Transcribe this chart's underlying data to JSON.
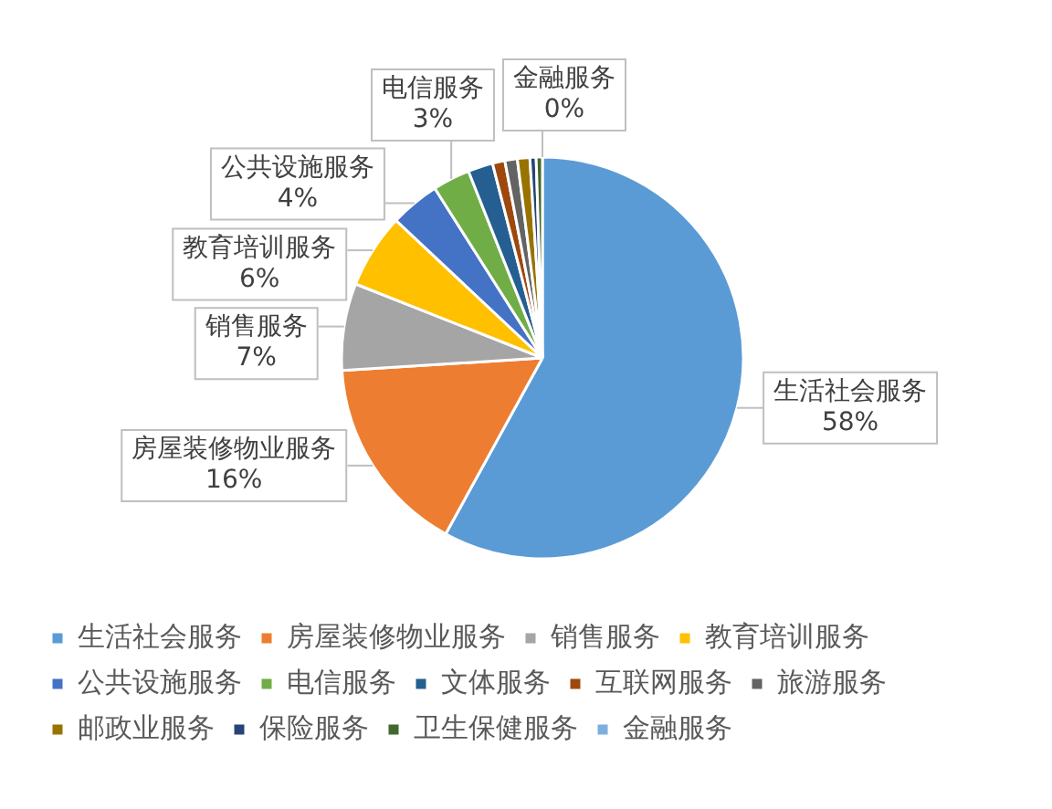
{
  "chart_data": {
    "type": "pie",
    "categories": [
      "生活社会服务",
      "房屋装修物业服务",
      "销售服务",
      "教育培训服务",
      "公共设施服务",
      "电信服务",
      "文体服务",
      "互联网服务",
      "旅游服务",
      "邮政业服务",
      "保险服务",
      "卫生保健服务",
      "金融服务"
    ],
    "values": [
      58,
      16,
      7,
      6,
      4,
      3,
      2,
      1,
      1,
      1,
      0.5,
      0.5,
      0
    ],
    "colors": [
      "#5b9bd5",
      "#ed7d31",
      "#a5a5a5",
      "#ffc000",
      "#4472c4",
      "#70ad47",
      "#255e91",
      "#9e480e",
      "#636363",
      "#997300",
      "#264478",
      "#43682b",
      "#7cafdd"
    ],
    "value_labels": [
      "58%",
      "16%",
      "7%",
      "6%",
      "4%",
      "3%",
      null,
      null,
      null,
      null,
      null,
      null,
      "0%"
    ],
    "legend": "bottom"
  }
}
